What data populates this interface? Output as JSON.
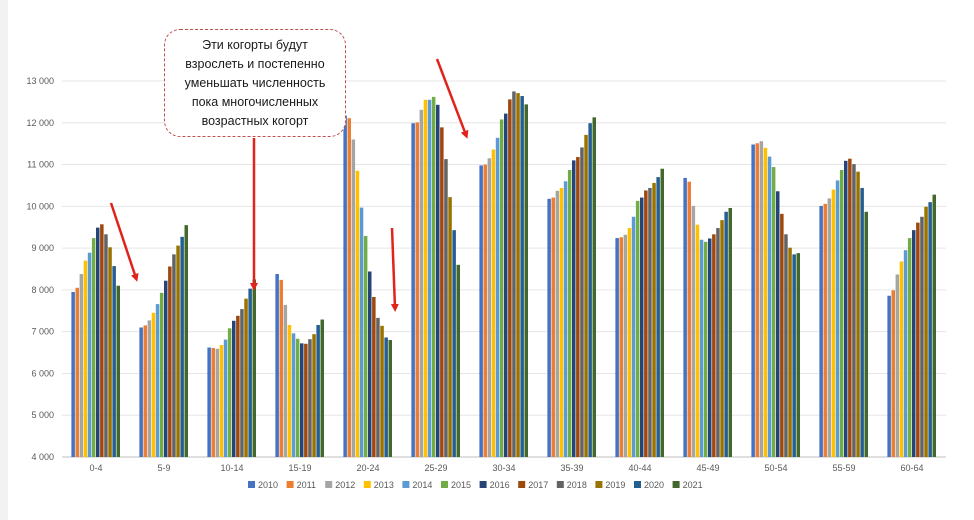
{
  "callout": {
    "text": "Эти когорты будут\nвзрослеть и постепенно\nуменьшать численность\nпока многочисленных\nвозрастных когорт"
  },
  "chart_data": {
    "type": "bar",
    "title": "",
    "xlabel": "",
    "ylabel": "",
    "ylim": [
      4000,
      13000
    ],
    "yticks": [
      4000,
      5000,
      6000,
      7000,
      8000,
      9000,
      10000,
      11000,
      12000,
      13000
    ],
    "ytick_labels": [
      "4 000",
      "5 000",
      "6 000",
      "7 000",
      "8 000",
      "9 000",
      "10 000",
      "11 000",
      "12 000",
      "13 000"
    ],
    "grid": true,
    "legend_position": "bottom",
    "categories": [
      "0-4",
      "5-9",
      "10-14",
      "15-19",
      "20-24",
      "25-29",
      "30-34",
      "35-39",
      "40-44",
      "45-49",
      "50-54",
      "55-59",
      "60-64"
    ],
    "series": [
      {
        "name": "2010",
        "color": "#4472c4",
        "values": [
          7950,
          7100,
          6620,
          8380,
          12170,
          11990,
          10980,
          10180,
          9240,
          10680,
          11480,
          10010,
          7860
        ]
      },
      {
        "name": "2011",
        "color": "#ed7d31",
        "values": [
          8050,
          7150,
          6610,
          8240,
          12110,
          12010,
          11000,
          10210,
          9260,
          10590,
          11510,
          10060,
          7990
        ]
      },
      {
        "name": "2012",
        "color": "#a5a5a5",
        "values": [
          8380,
          7270,
          6590,
          7640,
          11600,
          12310,
          11150,
          10370,
          9320,
          10010,
          11560,
          10190,
          8370
        ]
      },
      {
        "name": "2013",
        "color": "#ffc000",
        "values": [
          8700,
          7450,
          6680,
          7160,
          10850,
          12550,
          11360,
          10440,
          9480,
          9560,
          11400,
          10400,
          8680
        ]
      },
      {
        "name": "2014",
        "color": "#5b9bd5",
        "values": [
          8890,
          7660,
          6810,
          6960,
          9970,
          12550,
          11640,
          10600,
          9750,
          9200,
          11190,
          10620,
          8950
        ]
      },
      {
        "name": "2015",
        "color": "#70ad47",
        "values": [
          9240,
          7930,
          7080,
          6830,
          9290,
          12620,
          12080,
          10870,
          10130,
          9150,
          10940,
          10870,
          9240
        ]
      },
      {
        "name": "2016",
        "color": "#264478",
        "values": [
          9490,
          8220,
          7260,
          6720,
          8440,
          12430,
          12220,
          11100,
          10210,
          9230,
          10360,
          11090,
          9430
        ]
      },
      {
        "name": "2017",
        "color": "#9e480e",
        "values": [
          9570,
          8560,
          7380,
          6710,
          7830,
          11890,
          12560,
          11180,
          10380,
          9330,
          9820,
          11140,
          9610
        ]
      },
      {
        "name": "2018",
        "color": "#636363",
        "values": [
          9330,
          8850,
          7540,
          6820,
          7330,
          11130,
          12750,
          11410,
          10440,
          9480,
          9330,
          11010,
          9750
        ]
      },
      {
        "name": "2019",
        "color": "#997300",
        "values": [
          9020,
          9060,
          7790,
          6940,
          7140,
          10220,
          12710,
          11710,
          10560,
          9670,
          9010,
          10830,
          9990
        ]
      },
      {
        "name": "2020",
        "color": "#255e91",
        "values": [
          8570,
          9270,
          8030,
          7160,
          6860,
          9430,
          12640,
          11990,
          10700,
          9870,
          8850,
          10440,
          10100
        ]
      },
      {
        "name": "2021",
        "color": "#43682b",
        "values": [
          8100,
          9550,
          8250,
          7290,
          6800,
          8600,
          12440,
          12130,
          10900,
          9960,
          8880,
          9870,
          10280
        ]
      }
    ]
  },
  "annotations": {
    "arrows": [
      {
        "name": "arrow-0-4"
      },
      {
        "name": "arrow-callout"
      },
      {
        "name": "arrow-20-24"
      },
      {
        "name": "arrow-25-29"
      }
    ]
  }
}
